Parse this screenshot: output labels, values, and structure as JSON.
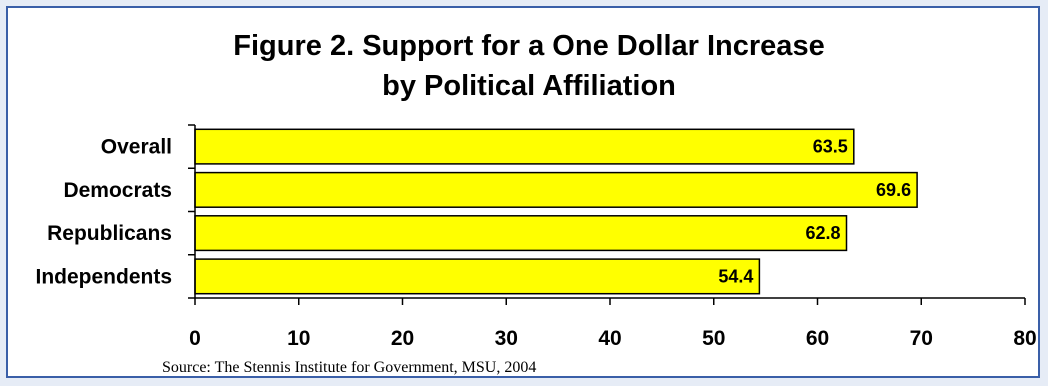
{
  "chart_data": {
    "type": "bar",
    "orientation": "horizontal",
    "title_lines": [
      "Figure 2. Support for a One Dollar Increase",
      "by Political Affiliation"
    ],
    "categories": [
      "Overall",
      "Democrats",
      "Republicans",
      "Independents"
    ],
    "values": [
      63.5,
      69.6,
      62.8,
      54.4
    ],
    "data_labels": [
      "63.5",
      "69.6",
      "62.8",
      "54.4"
    ],
    "xlim": [
      0,
      80
    ],
    "xticks": [
      "0",
      "10",
      "20",
      "30",
      "40",
      "50",
      "60",
      "70",
      "80"
    ],
    "grid": false,
    "legend": "none",
    "bar_color": "#ffff00",
    "source": "Source: The Stennis Institute for Government, MSU, 2004"
  },
  "colors": {
    "frame_border": "#3a5fa8",
    "page_background": "#e6ecf6",
    "bar_fill": "#ffff00"
  }
}
